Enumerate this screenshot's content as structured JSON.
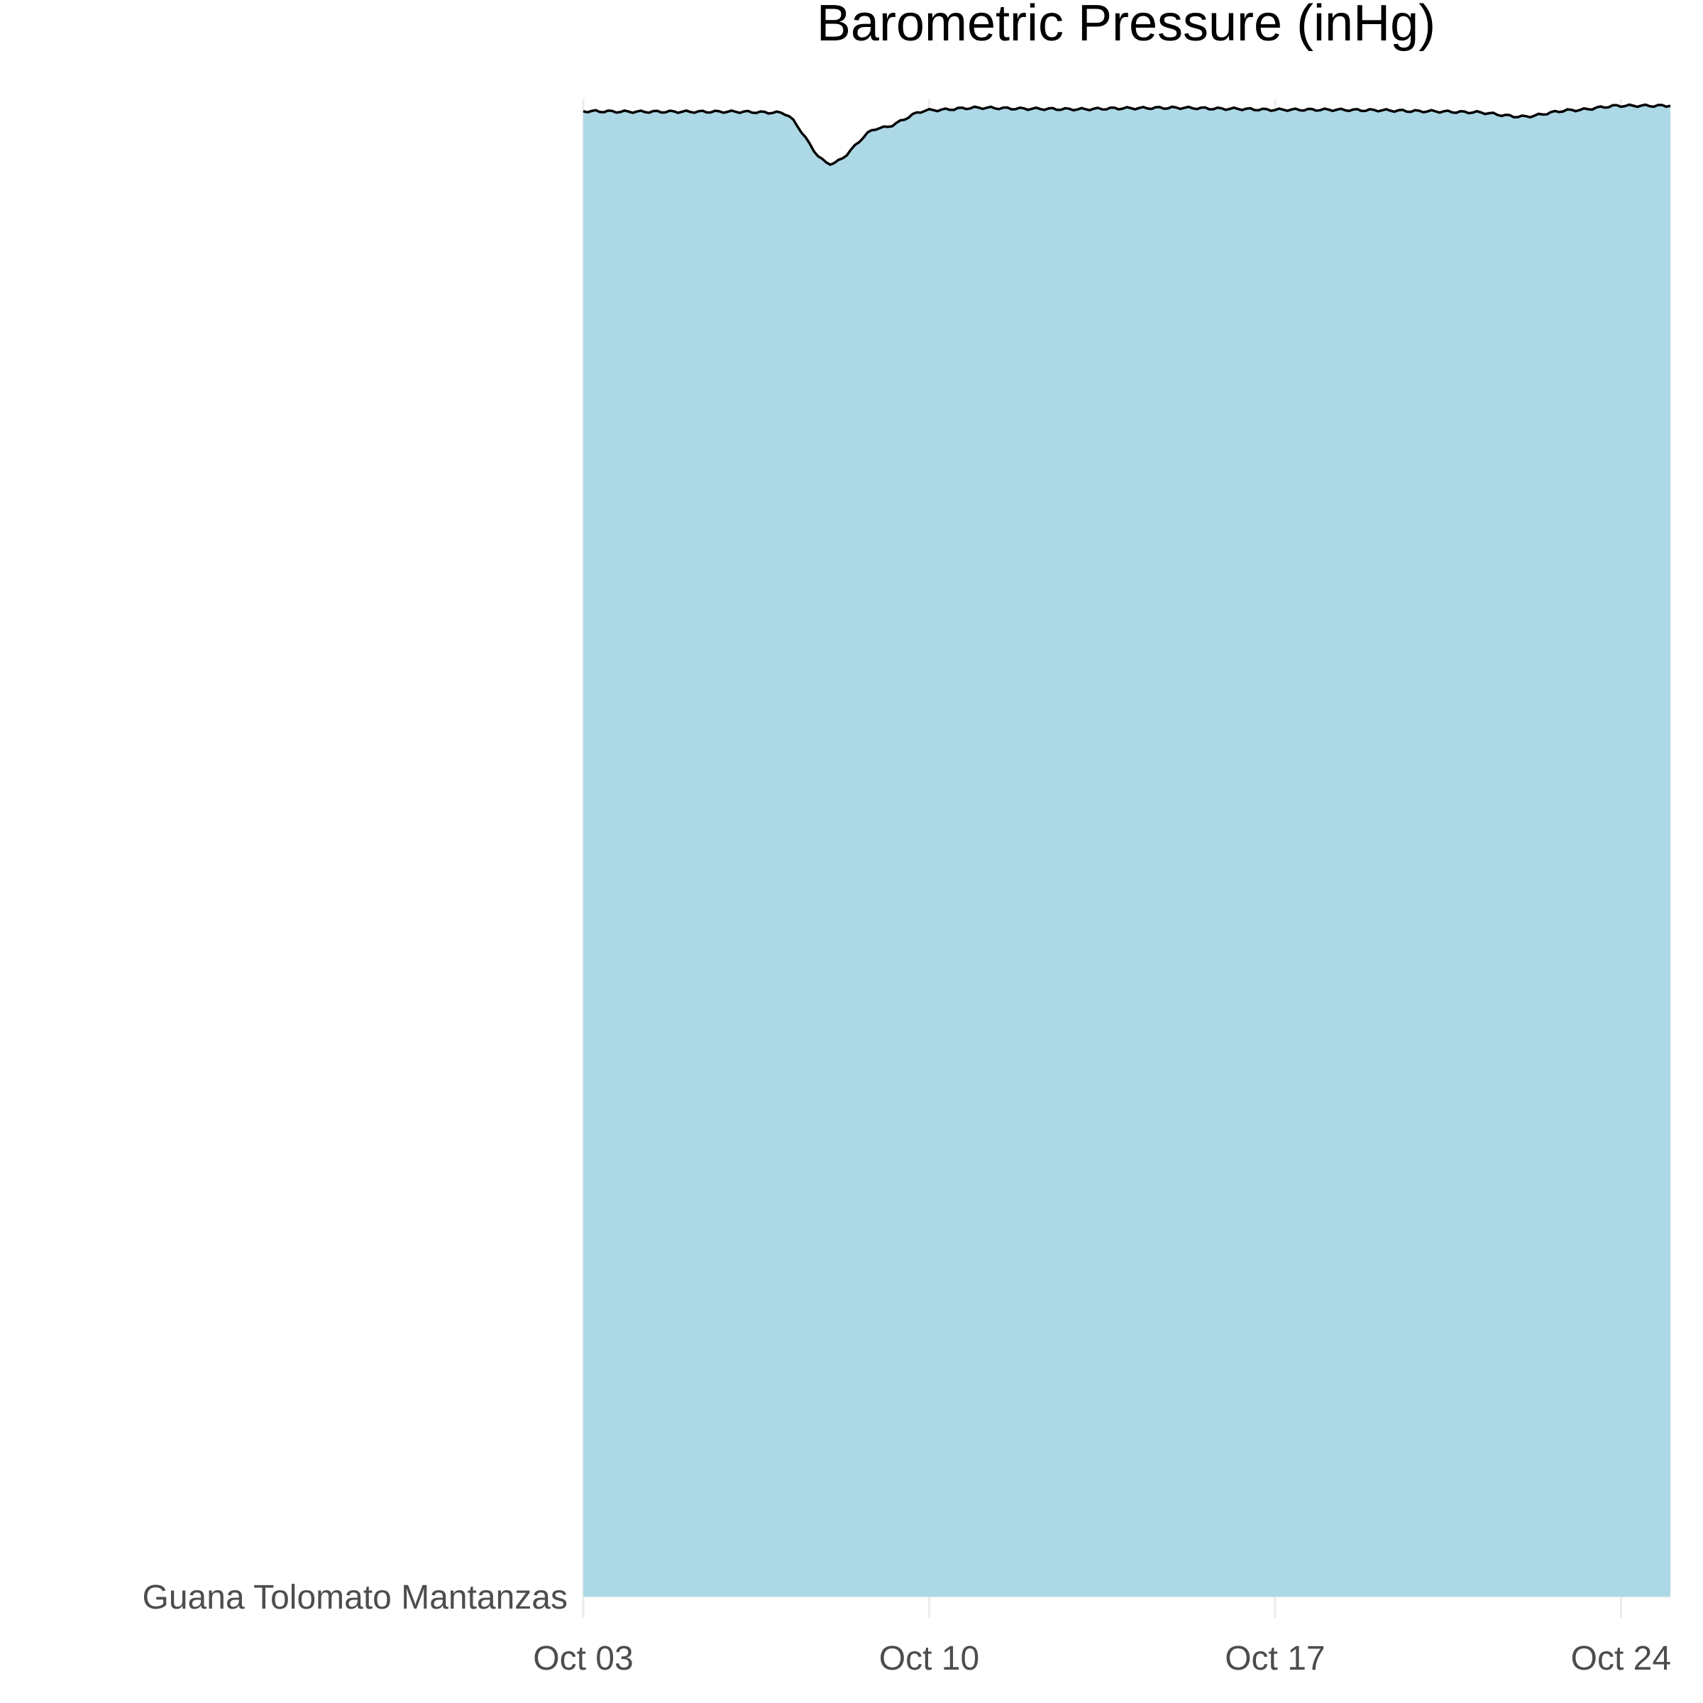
{
  "chart_data": {
    "type": "area",
    "title": "Barometric Pressure (inHg)",
    "xlabel": "",
    "ylabel": "",
    "x_ticks": [
      "Oct 03",
      "Oct 10",
      "Oct 17",
      "Oct 24"
    ],
    "y_ticks": [
      "Guana Tolomato Mantanzas"
    ],
    "grid": true,
    "legend": "none",
    "colors": {
      "fill": "#add8e6",
      "line": "#000000"
    },
    "xlim": [
      "Oct 03",
      "Oct 25"
    ],
    "ylim": [
      0,
      30.3
    ],
    "series": [
      {
        "x": [
          "Oct 03",
          "Oct 04",
          "Oct 05",
          "Oct 06",
          "Oct 07",
          "Oct 08",
          "Oct 09",
          "Oct 10",
          "Oct 11",
          "Oct 12",
          "Oct 13",
          "Oct 14",
          "Oct 15",
          "Oct 16",
          "Oct 17",
          "Oct 18",
          "Oct 19",
          "Oct 20",
          "Oct 21",
          "Oct 22",
          "Oct 23",
          "Oct 24",
          "Oct 25"
        ],
        "values": [
          30.06,
          30.05,
          30.05,
          30.05,
          30.03,
          29.0,
          29.72,
          30.08,
          30.13,
          30.11,
          30.1,
          30.12,
          30.13,
          30.11,
          30.09,
          30.09,
          30.08,
          30.06,
          30.04,
          29.95,
          30.08,
          30.17,
          30.17
        ]
      }
    ]
  }
}
